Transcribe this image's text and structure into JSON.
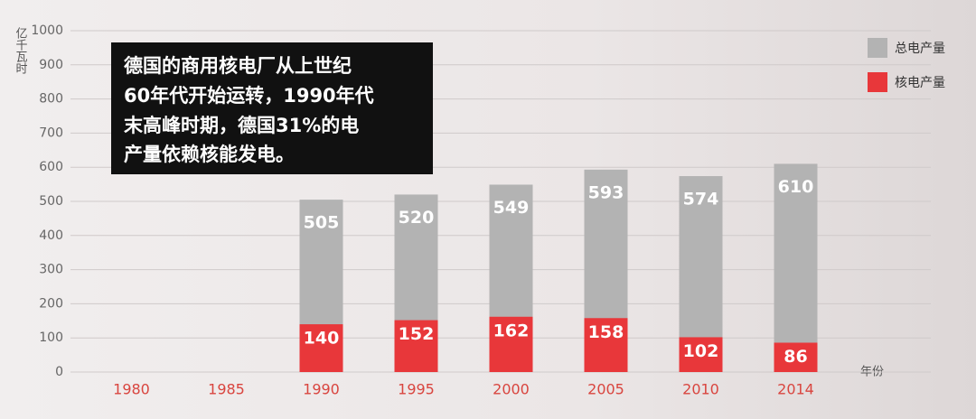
{
  "chart_data": {
    "type": "bar",
    "annotation": [
      "德国的商用核电厂从上世纪",
      "60年代开始运转，1990年代",
      "末高峰时期，德国31%的电",
      "产量依赖核能发电。"
    ],
    "y_label": "亿千瓦时",
    "x_label": "年份",
    "categories": [
      "1980",
      "1985",
      "1990",
      "1995",
      "2000",
      "2005",
      "2010",
      "2014"
    ],
    "series": [
      {
        "name": "总电产量",
        "color": "#b3b3b3",
        "values": [
          null,
          null,
          505,
          520,
          549,
          593,
          574,
          610
        ]
      },
      {
        "name": "核电产量",
        "color": "#e8373a",
        "values": [
          null,
          null,
          140,
          152,
          162,
          158,
          102,
          86
        ]
      }
    ],
    "ylim": [
      0,
      1000
    ],
    "yticks": [
      0,
      100,
      200,
      300,
      400,
      500,
      600,
      700,
      800,
      900,
      1000
    ],
    "grid": true
  }
}
